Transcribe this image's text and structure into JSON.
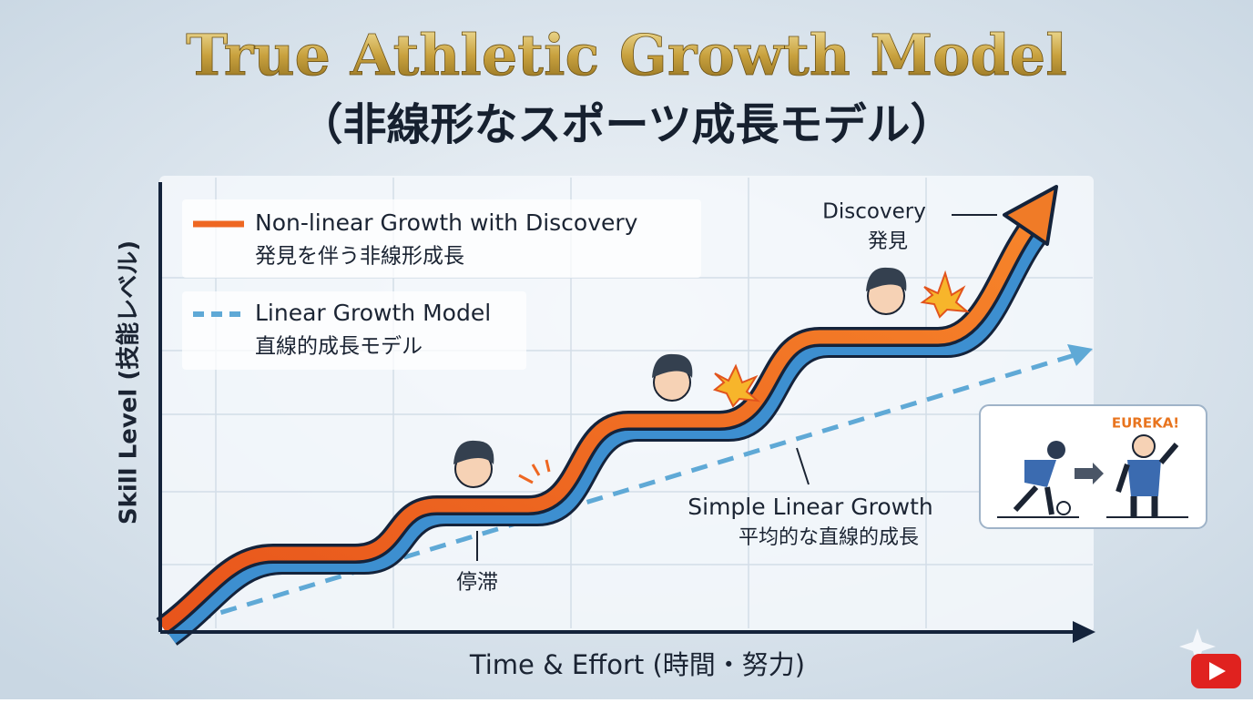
{
  "header": {
    "title": "True Athletic Growth Model",
    "subtitle": "（非線形なスポーツ成長モデル）"
  },
  "axes": {
    "y_label": "Skill Level (技能レベル)",
    "x_label": "Time & Effort (時間・努力)"
  },
  "legend": [
    {
      "label": "Non-linear Growth with Discovery",
      "sublabel": "発見を伴う非線形成長"
    },
    {
      "label": "Linear Growth Model",
      "sublabel": "直線的成長モデル"
    }
  ],
  "annotations": {
    "discovery": "Discovery",
    "discovery_ja": "発見",
    "linear": "Simple Linear Growth",
    "linear_ja": "平均的な直線的成長",
    "plateau": "停滞",
    "eureka": "EUREKA!"
  }
}
